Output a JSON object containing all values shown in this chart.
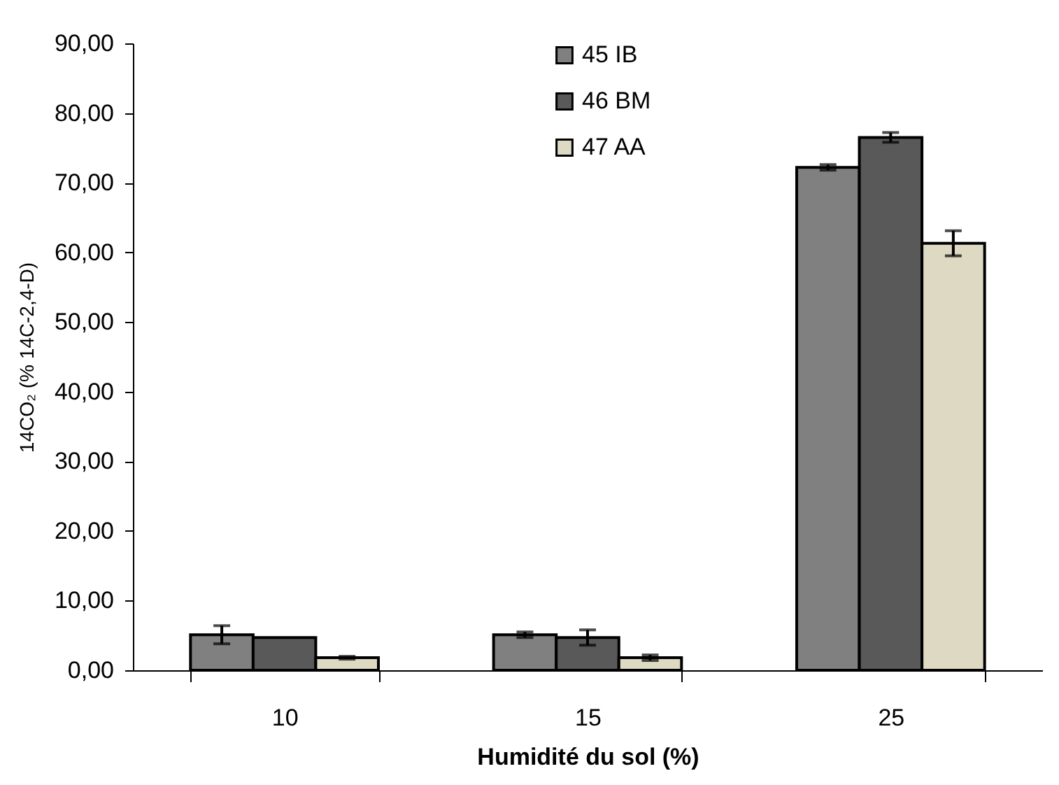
{
  "chart_data": {
    "type": "bar",
    "xlabel": "Humidité du sol (%)",
    "ylabel": "14CO₂ (% 14C-2,4-D)",
    "categories": [
      "10",
      "15",
      "25"
    ],
    "series": [
      {
        "name": "45 IB",
        "color": "#808080",
        "values": [
          5.1,
          5.1,
          72.2
        ],
        "errors": [
          1.3,
          0.4,
          0.4
        ]
      },
      {
        "name": "46 BM",
        "color": "#595959",
        "values": [
          4.7,
          4.7,
          76.5
        ],
        "errors": [
          null,
          1.1,
          0.7
        ]
      },
      {
        "name": "47 AA",
        "color": "#ddd9c3",
        "values": [
          1.8,
          1.8,
          61.3
        ],
        "errors": [
          0.2,
          0.4,
          1.8
        ]
      }
    ],
    "ylim": [
      0,
      90
    ],
    "yticks": [
      {
        "value": 0,
        "label": "0,00"
      },
      {
        "value": 10,
        "label": "10,00"
      },
      {
        "value": 20,
        "label": "20,00"
      },
      {
        "value": 30,
        "label": "30,00"
      },
      {
        "value": 40,
        "label": "40,00"
      },
      {
        "value": 50,
        "label": "50,00"
      },
      {
        "value": 60,
        "label": "60,00"
      },
      {
        "value": 70,
        "label": "70,00"
      },
      {
        "value": 80,
        "label": "80,00"
      },
      {
        "value": 90,
        "label": "90,00"
      }
    ],
    "legend": "top",
    "grid": false
  }
}
